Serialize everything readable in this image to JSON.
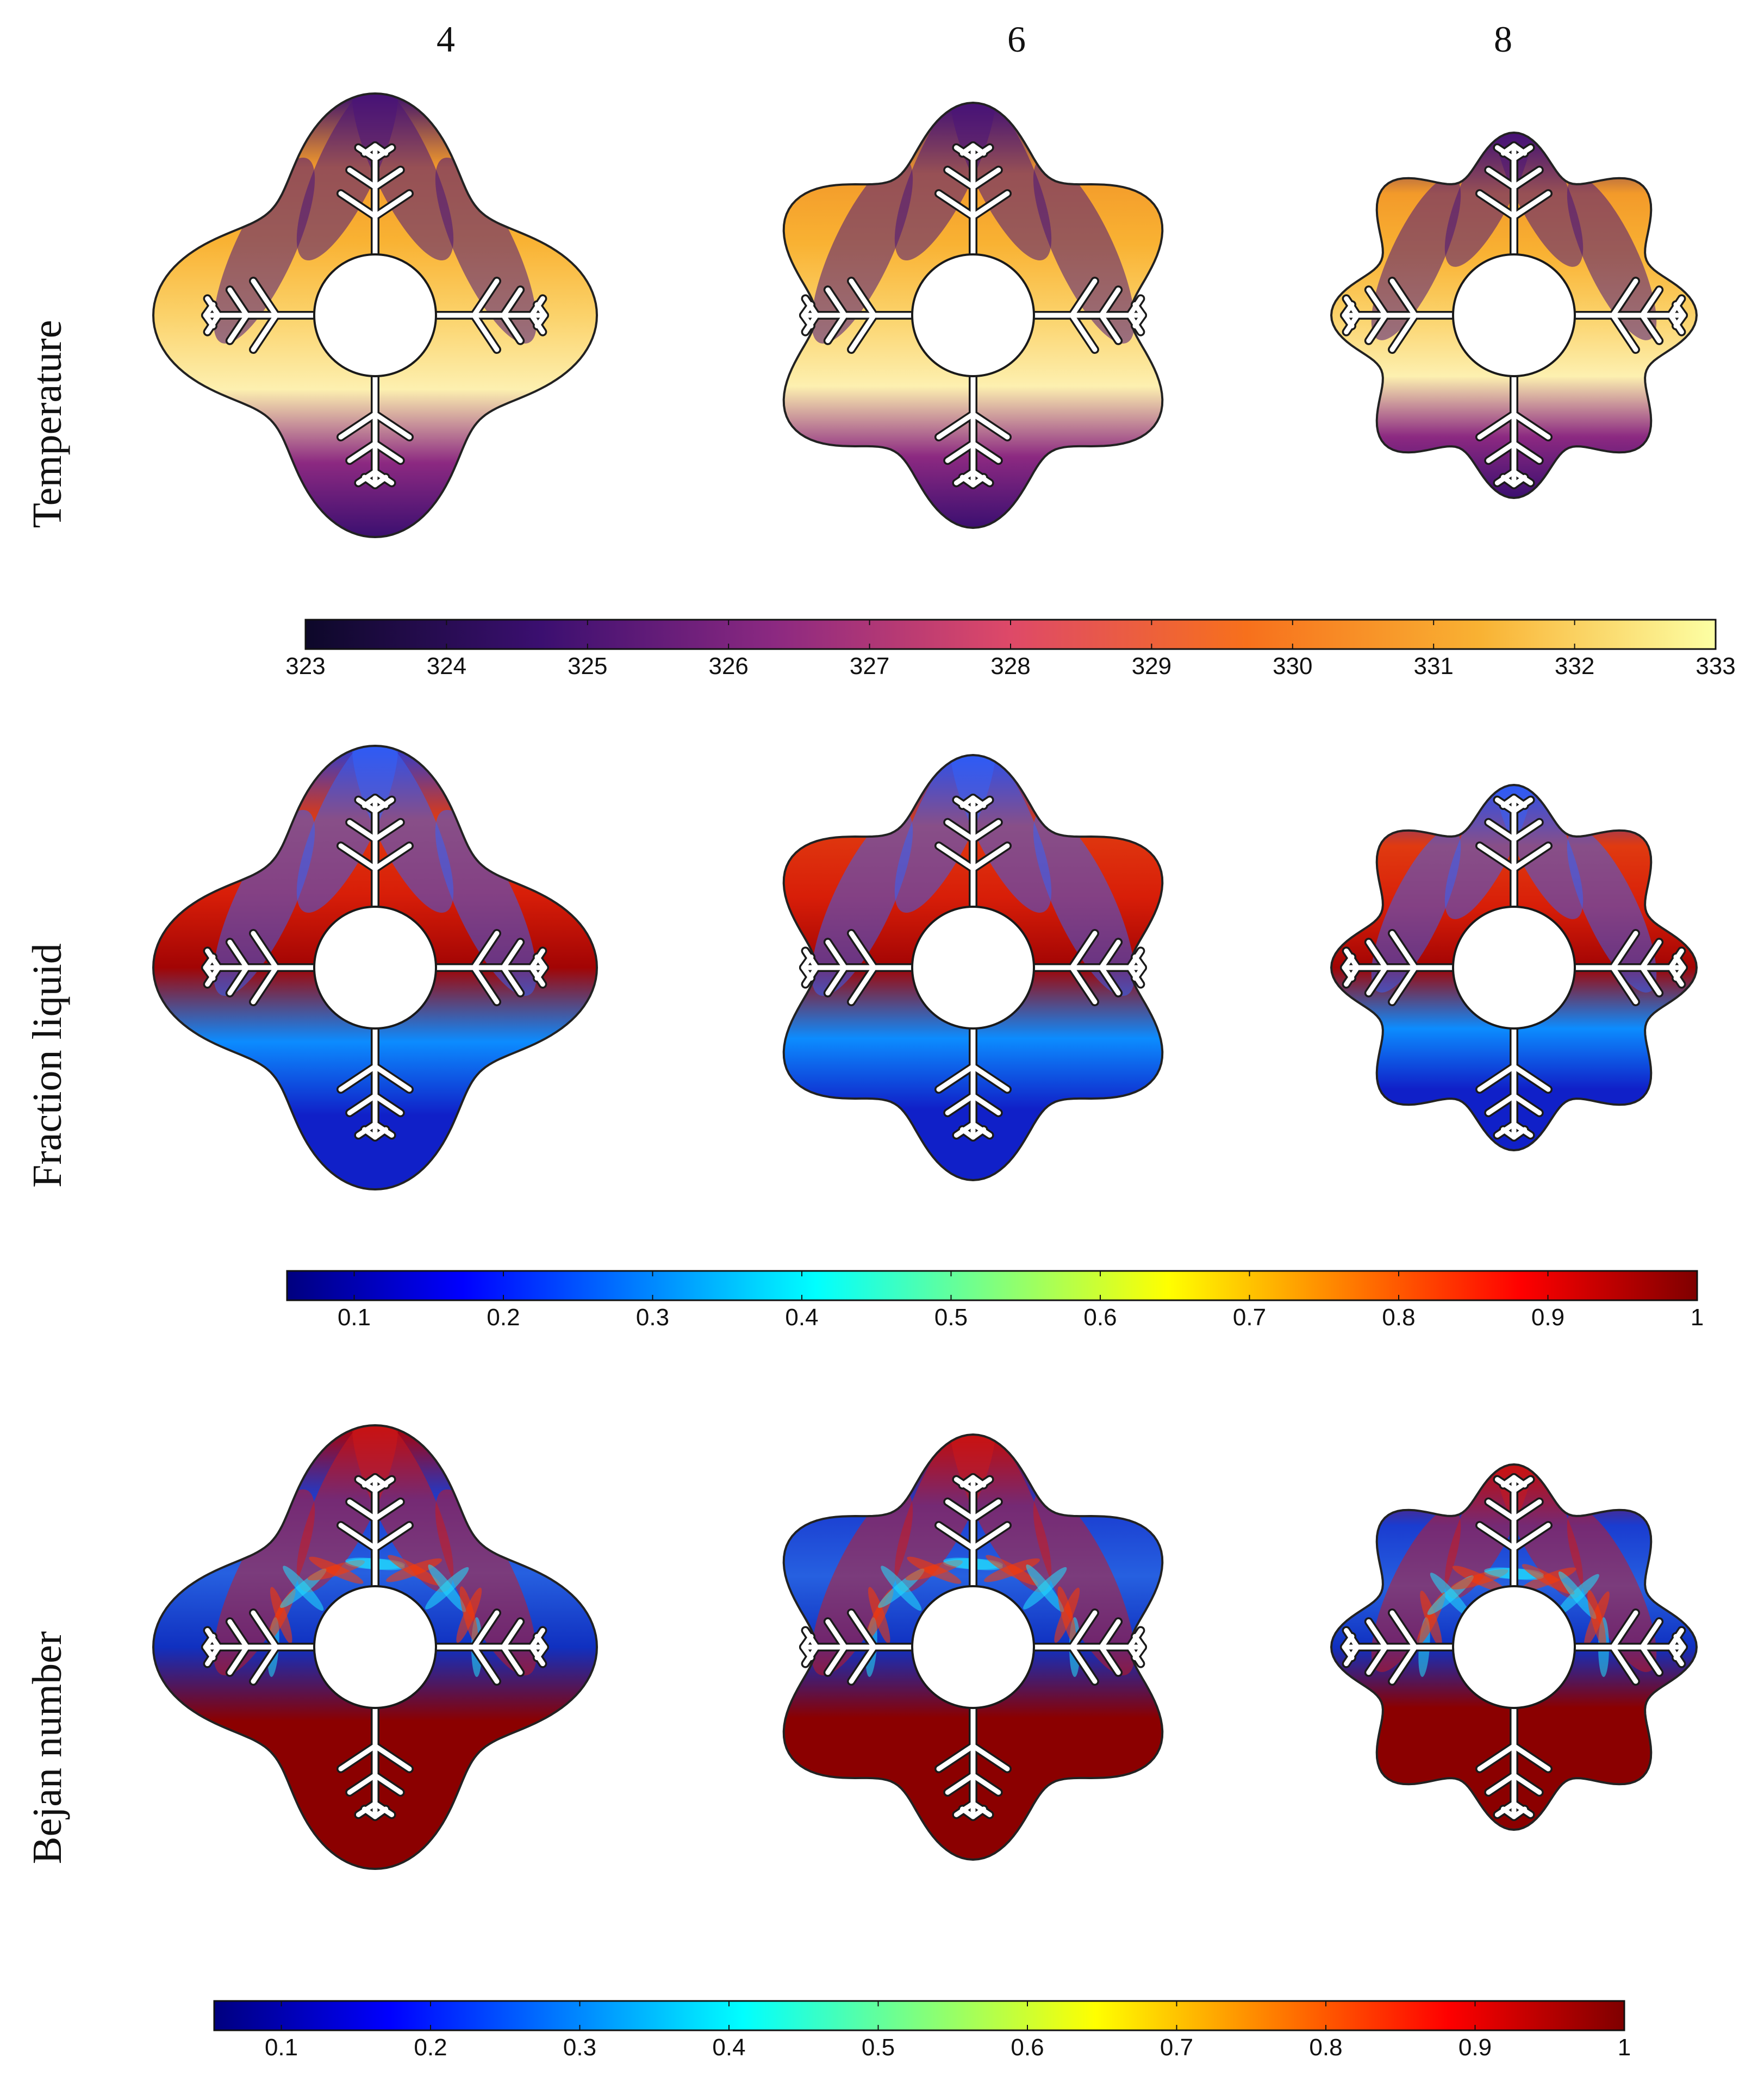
{
  "column_labels": [
    "4",
    "6",
    "8"
  ],
  "rows": [
    {
      "label": "Temperature",
      "colormap": "inferno",
      "shading": "temperature"
    },
    {
      "label": "Fraction liquid",
      "colormap": "jet",
      "shading": "fraction"
    },
    {
      "label": "Bejan number",
      "colormap": "jet",
      "shading": "bejan"
    }
  ],
  "colorbars": [
    {
      "name": "temperature",
      "ticks": [
        "323",
        "324",
        "325",
        "326",
        "327",
        "328",
        "329",
        "330",
        "331",
        "332",
        "333"
      ],
      "range": [
        323,
        333
      ]
    },
    {
      "name": "fraction-liquid",
      "ticks": [
        "0.1",
        "0.2",
        "0.3",
        "0.4",
        "0.5",
        "0.6",
        "0.7",
        "0.8",
        "0.9",
        "1"
      ],
      "range": [
        0.055,
        1
      ]
    },
    {
      "name": "bejan-number",
      "ticks": [
        "0.1",
        "0.2",
        "0.3",
        "0.4",
        "0.5",
        "0.6",
        "0.7",
        "0.8",
        "0.9",
        "1"
      ],
      "range": [
        0.055,
        1
      ]
    }
  ],
  "colors": {
    "inferno": [
      "#0d0829",
      "#3b0f70",
      "#8c2981",
      "#de4968",
      "#f7701c",
      "#f9b233",
      "#fcffa4"
    ],
    "jet": [
      "#00007f",
      "#0000ff",
      "#007fff",
      "#00ffff",
      "#7fff7f",
      "#ffff00",
      "#ff7f00",
      "#ff0000",
      "#7f0000"
    ]
  }
}
